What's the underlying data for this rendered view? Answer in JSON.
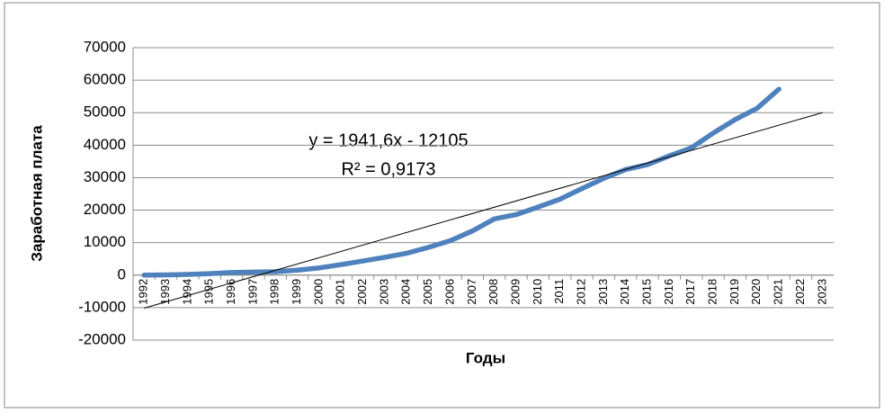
{
  "chart_data": {
    "type": "line",
    "y_label": "Заработная плата",
    "x_label": "Годы",
    "categories": [
      "1992",
      "1993",
      "1994",
      "1995",
      "1996",
      "1997",
      "1998",
      "1999",
      "2000",
      "2001",
      "2002",
      "2003",
      "2004",
      "2005",
      "2006",
      "2007",
      "2008",
      "2009",
      "2010",
      "2011",
      "2012",
      "2013",
      "2014",
      "2015",
      "2016",
      "2017",
      "2018",
      "2019",
      "2020",
      "2021",
      "2022",
      "2023"
    ],
    "series": [
      {
        "color": "#4f81bd",
        "values": [
          6,
          60,
          220,
          470,
          790,
          950,
          1050,
          1520,
          2220,
          3240,
          4360,
          5500,
          6740,
          8550,
          10630,
          13590,
          17290,
          18640,
          20950,
          23370,
          26630,
          29790,
          32500,
          34030,
          36710,
          39170,
          43720,
          47870,
          51340,
          57240,
          null,
          null
        ]
      }
    ],
    "trendline": {
      "slope": 1941.6,
      "intercept": -12105,
      "label": "y = 1941,6x - 12105",
      "r2": 0.9173,
      "r2_label": "R² = 0,9173",
      "color": "#000000"
    },
    "ylim": [
      -20000,
      70000
    ],
    "yticks": [
      -20000,
      -10000,
      0,
      10000,
      20000,
      30000,
      40000,
      50000,
      60000,
      70000
    ],
    "grid": true
  }
}
